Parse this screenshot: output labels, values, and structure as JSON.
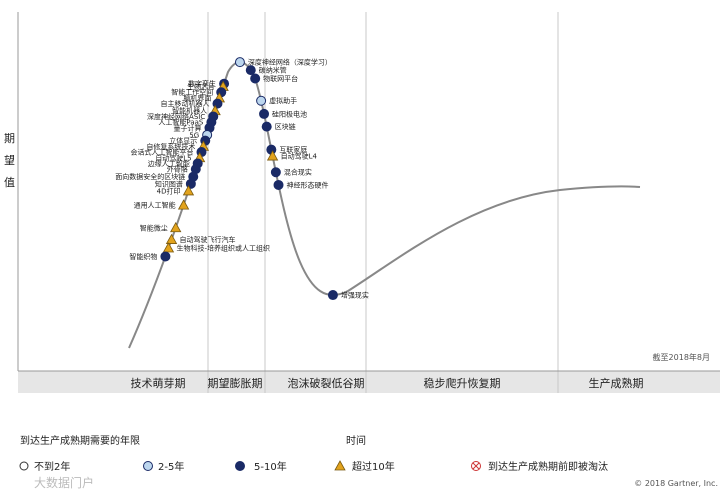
{
  "chart_data": {
    "type": "scatter",
    "ylabel": "期望值",
    "date_note": "截至2018年8月",
    "phases": [
      "技术萌芽期",
      "期望膨胀期",
      "泡沫破裂低谷期",
      "稳步爬升恢复期",
      "生产成熟期"
    ],
    "legend": {
      "title_left": "到达生产成熟期需要的年限",
      "title_time": "时间",
      "items": [
        {
          "key": "lt2",
          "label": "不到2年"
        },
        {
          "key": "y2_5",
          "label": "2-5年"
        },
        {
          "key": "y5_10",
          "label": "5-10年"
        },
        {
          "key": "gt10",
          "label": "超过10年"
        },
        {
          "key": "obsolete",
          "label": "到达生产成熟期前即被淘汰"
        }
      ]
    },
    "technologies": [
      {
        "name": "数字孪生",
        "t": 0.925,
        "cat": "y5_10",
        "side": "left"
      },
      {
        "name": "生物芯片",
        "t": 0.915,
        "cat": "gt10",
        "side": "left"
      },
      {
        "name": "智能工作空间",
        "t": 0.895,
        "cat": "y5_10",
        "side": "left"
      },
      {
        "name": "脑机界面",
        "t": 0.875,
        "cat": "gt10",
        "side": "left"
      },
      {
        "name": "自主移动机器人",
        "t": 0.855,
        "cat": "y5_10",
        "side": "left"
      },
      {
        "name": "智能机器人",
        "t": 0.83,
        "cat": "gt10",
        "side": "left"
      },
      {
        "name": "深度神经网络ASIC",
        "t": 0.81,
        "cat": "y5_10",
        "side": "left"
      },
      {
        "name": "人工智能PaaS",
        "t": 0.79,
        "cat": "y5_10",
        "side": "left"
      },
      {
        "name": "量子计算",
        "t": 0.77,
        "cat": "y5_10",
        "side": "left"
      },
      {
        "name": "5G",
        "t": 0.745,
        "cat": "y2_5",
        "side": "left"
      },
      {
        "name": "立体显示",
        "t": 0.725,
        "cat": "y5_10",
        "side": "left"
      },
      {
        "name": "自修复系统技术",
        "t": 0.705,
        "cat": "gt10",
        "side": "left"
      },
      {
        "name": "会话式人工智能平台",
        "t": 0.685,
        "cat": "y5_10",
        "side": "left"
      },
      {
        "name": "自动驾驶L5",
        "t": 0.665,
        "cat": "gt10",
        "side": "left"
      },
      {
        "name": "边缘人工智能",
        "t": 0.645,
        "cat": "y5_10",
        "side": "left"
      },
      {
        "name": "外骨骼",
        "t": 0.625,
        "cat": "y5_10",
        "side": "left"
      },
      {
        "name": "面向数据安全的区块链",
        "t": 0.6,
        "cat": "y5_10",
        "side": "left"
      },
      {
        "name": "知识图谱",
        "t": 0.575,
        "cat": "y5_10",
        "side": "left"
      },
      {
        "name": "4D打印",
        "t": 0.55,
        "cat": "gt10",
        "side": "left"
      },
      {
        "name": "通用人工智能",
        "t": 0.5,
        "cat": "gt10",
        "side": "left"
      },
      {
        "name": "智能微尘",
        "t": 0.42,
        "cat": "gt10",
        "side": "left"
      },
      {
        "name": "自动驾驶飞行汽车",
        "t": 0.38,
        "cat": "gt10",
        "side": "right"
      },
      {
        "name": "生物科技-培养组织或人工组织",
        "t": 0.35,
        "cat": "gt10",
        "side": "right"
      },
      {
        "name": "神经形态硬件",
        "t": 0.62,
        "cat": "y5_10",
        "side": "right"
      },
      {
        "name": "深度神经网络（深度学习）",
        "t": 1.0,
        "cat": "y2_5",
        "side": "right"
      },
      {
        "name": "碳纳米管",
        "t": 0.975,
        "cat": "y5_10",
        "side": "right"
      },
      {
        "name": "物联网平台",
        "t": 0.95,
        "cat": "y5_10",
        "side": "right"
      },
      {
        "name": "虚拟助手",
        "t": 0.88,
        "cat": "y2_5",
        "side": "right"
      },
      {
        "name": "硅阳极电池",
        "t": 0.84,
        "cat": "y5_10",
        "side": "right"
      },
      {
        "name": "区块链",
        "t": 0.8,
        "cat": "y5_10",
        "side": "right"
      },
      {
        "name": "互联家庭",
        "t": 0.73,
        "cat": "y5_10",
        "side": "right"
      },
      {
        "name": "自动驾驶L4",
        "t": 0.71,
        "cat": "gt10",
        "side": "right"
      },
      {
        "name": "混合现实",
        "t": 0.66,
        "cat": "y5_10",
        "side": "right"
      },
      {
        "name": "智能织物",
        "t": 0.32,
        "cat": "y5_10",
        "side": "left"
      },
      {
        "name": "增强现实",
        "t": 0.28,
        "cat": "y5_10",
        "side": "right"
      }
    ],
    "copyright": "© 2018 Gartner, Inc.",
    "watermark": "大数据门户"
  },
  "colors": {
    "navy": "#1a2a66",
    "light_blue": "#bcd6ee",
    "gold": "#e2a31d",
    "curve": "#888888",
    "band": "#e6e6e6",
    "divider": "#c8c8c8"
  }
}
